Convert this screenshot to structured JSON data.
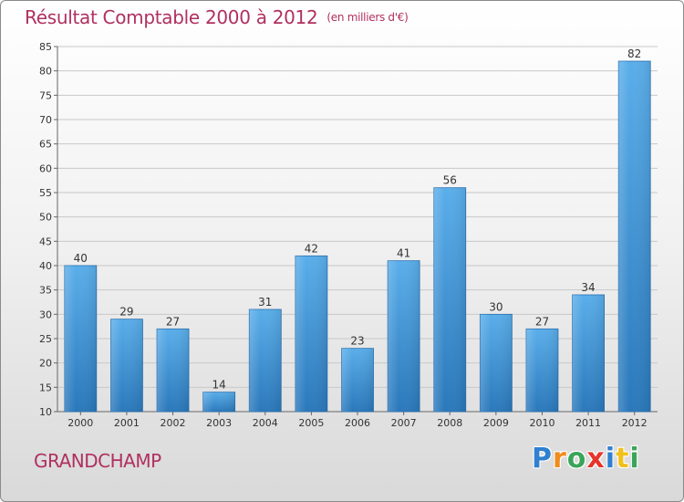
{
  "title": "Résultat Comptable 2000 à 2012",
  "unit": "(en milliers d'€)",
  "commune": "GRANDCHAMP",
  "logo": {
    "letters": [
      {
        "char": "P",
        "color": "#2f80d0"
      },
      {
        "char": "r",
        "color": "#f08c1e"
      },
      {
        "char": "o",
        "color": "#3aa55a"
      },
      {
        "char": "x",
        "color": "#e6352b"
      },
      {
        "char": "i",
        "color": "#2f80d0"
      },
      {
        "char": "t",
        "color": "#f0c01e"
      },
      {
        "char": "i",
        "color": "#3aa55a"
      }
    ]
  },
  "chart_data": {
    "type": "bar",
    "title": "Résultat Comptable 2000 à 2012",
    "ylabel": "(en milliers d'€)",
    "categories": [
      "2000",
      "2001",
      "2002",
      "2003",
      "2004",
      "2005",
      "2006",
      "2007",
      "2008",
      "2009",
      "2010",
      "2011",
      "2012"
    ],
    "values": [
      40,
      29,
      27,
      14,
      31,
      42,
      23,
      41,
      56,
      30,
      27,
      34,
      82
    ],
    "ylim": [
      10,
      85
    ],
    "yticks": [
      10,
      15,
      20,
      25,
      30,
      35,
      40,
      45,
      50,
      55,
      60,
      65,
      70,
      75,
      80,
      85
    ],
    "grid": true,
    "bar_color": "#3b95d8",
    "grid_color": "#c8c8c8"
  }
}
